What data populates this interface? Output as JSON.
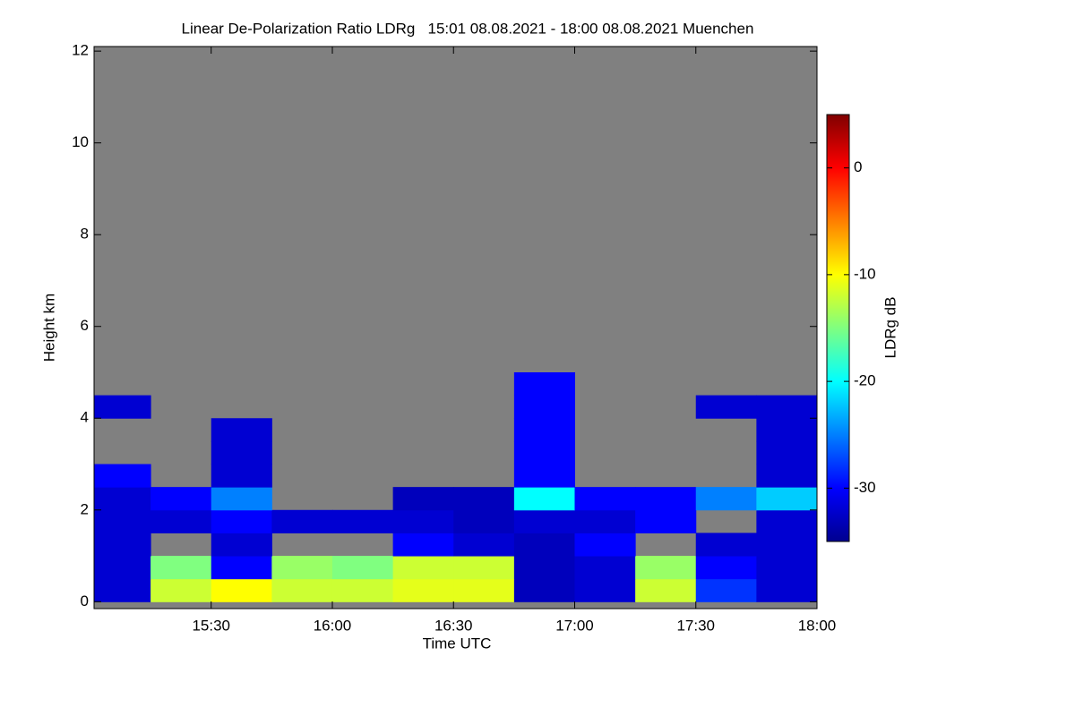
{
  "chart_data": {
    "type": "heatmap",
    "title": "Linear De-Polarization Ratio LDRg   15:01 08.08.2021 - 18:00 08.08.2021 Muenchen",
    "x_label": "Time UTC",
    "y_label": "Height km",
    "colorbar_label": "LDRg dB",
    "xlim": [
      15.0167,
      18.0
    ],
    "xticks": [
      {
        "value": 15.5,
        "label": "15:30"
      },
      {
        "value": 16.0,
        "label": "16:00"
      },
      {
        "value": 16.5,
        "label": "16:30"
      },
      {
        "value": 17.0,
        "label": "17:00"
      },
      {
        "value": 17.5,
        "label": "17:30"
      },
      {
        "value": 18.0,
        "label": "18:00"
      }
    ],
    "ylim": [
      -0.15,
      12.1
    ],
    "yticks": [
      0,
      2,
      4,
      6,
      8,
      10,
      12
    ],
    "zlim": [
      -35,
      5
    ],
    "zticks": [
      0,
      -10,
      -20,
      -30
    ],
    "colorscale": [
      [
        0,
        "#00008f"
      ],
      [
        0.125,
        "#0000ff"
      ],
      [
        0.375,
        "#00ffff"
      ],
      [
        0.625,
        "#ffff00"
      ],
      [
        0.875,
        "#ff0000"
      ],
      [
        1,
        "#800000"
      ]
    ],
    "nodata_color": "#808080",
    "xbins": [
      15,
      15.25,
      15.5,
      15.75,
      16,
      16.25,
      16.5,
      16.75,
      17,
      17.25,
      17.5,
      17.75,
      18
    ],
    "ybins": [
      0,
      0.5,
      1,
      1.5,
      2,
      2.5,
      3,
      3.5,
      4,
      4.5,
      5
    ],
    "z": [
      [
        -32,
        -12,
        -10,
        -12,
        -12,
        -11,
        -11,
        -33,
        -32,
        -12,
        -28,
        -32
      ],
      [
        -32,
        -15,
        -30,
        -14,
        -15,
        -12,
        -12,
        -33,
        -32,
        -14,
        -30,
        -32
      ],
      [
        -32,
        null,
        -32,
        null,
        null,
        -30,
        -32,
        -33,
        -30,
        null,
        -32,
        -32
      ],
      [
        -32,
        -32,
        -30,
        -32,
        -32,
        -32,
        -33,
        -32,
        -32,
        -30,
        null,
        -32
      ],
      [
        -32,
        -30,
        -25,
        null,
        null,
        -33,
        -33,
        -20,
        -30,
        -30,
        -25,
        -22
      ],
      [
        -30,
        null,
        -32,
        null,
        null,
        null,
        null,
        -30,
        null,
        null,
        null,
        -32
      ],
      [
        null,
        null,
        -32,
        null,
        null,
        null,
        null,
        -30,
        null,
        null,
        null,
        -32
      ],
      [
        null,
        null,
        -32,
        null,
        null,
        null,
        null,
        -30,
        null,
        null,
        null,
        -32
      ],
      [
        -32,
        null,
        null,
        null,
        null,
        null,
        null,
        -30,
        null,
        null,
        -32,
        -32
      ],
      [
        null,
        null,
        null,
        null,
        null,
        null,
        null,
        -30,
        null,
        null,
        null,
        null
      ]
    ]
  }
}
